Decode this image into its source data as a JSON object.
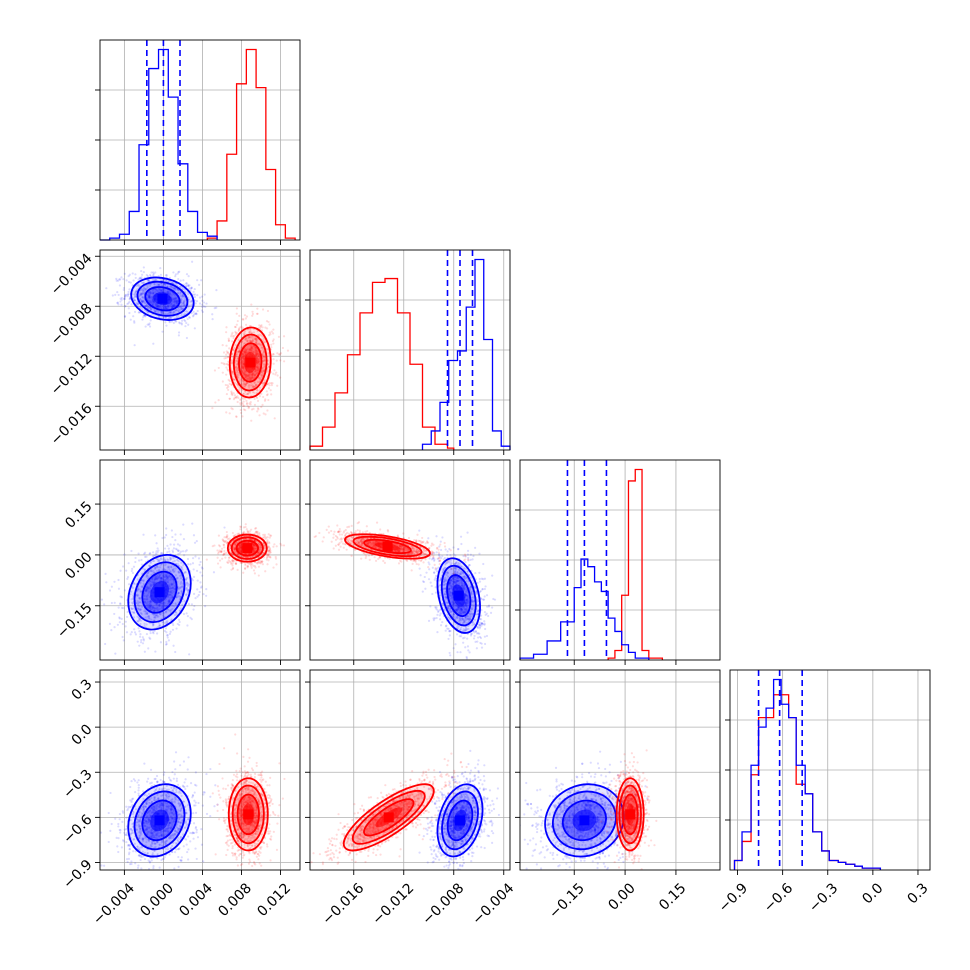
{
  "chart_data": {
    "type": "corner",
    "grid": true,
    "colors": {
      "series_a": "#0000ff",
      "series_b": "#ff0000"
    },
    "parameters": [
      {
        "range": [
          -0.0065,
          0.014
        ],
        "ticks": [
          -0.004,
          0.0,
          0.004,
          0.008,
          0.012
        ],
        "tick_labels": [
          "−0.004",
          "0.000",
          "0.004",
          "0.008",
          "0.012"
        ]
      },
      {
        "range": [
          -0.0195,
          -0.0035
        ],
        "ticks": [
          -0.016,
          -0.012,
          -0.008,
          -0.004
        ],
        "tick_labels": [
          "−0.016",
          "−0.012",
          "−0.008",
          "−0.004"
        ]
      },
      {
        "range": [
          -0.31,
          0.28
        ],
        "ticks": [
          -0.15,
          0.0,
          0.15
        ],
        "tick_labels": [
          "−0.15",
          "0.00",
          "0.15"
        ]
      },
      {
        "range": [
          -0.95,
          0.38
        ],
        "ticks": [
          -0.9,
          -0.6,
          -0.3,
          0.0,
          0.3
        ],
        "tick_labels": [
          "−0.9",
          "−0.6",
          "−0.3",
          "0.0",
          "0.3"
        ]
      }
    ],
    "histograms": [
      {
        "series_a": {
          "bins": [
            -0.0065,
            -0.0055,
            -0.0045,
            -0.0035,
            -0.0025,
            -0.0015,
            -0.0005,
            0.0005,
            0.0015,
            0.0025,
            0.0035,
            0.0045,
            0.0055
          ],
          "counts": [
            0,
            1,
            3,
            15,
            50,
            90,
            100,
            75,
            40,
            15,
            4,
            2
          ]
        },
        "series_b": {
          "bins": [
            0.0045,
            0.0055,
            0.0065,
            0.0075,
            0.0085,
            0.0095,
            0.0105,
            0.0115,
            0.0125,
            0.0135
          ],
          "counts": [
            1,
            10,
            45,
            82,
            100,
            80,
            37,
            8,
            1
          ]
        },
        "quantiles_a": [
          -0.0017,
          0.0,
          0.0017
        ]
      },
      {
        "series_a": {
          "bins": [
            -0.0105,
            -0.0098,
            -0.0091,
            -0.0084,
            -0.0077,
            -0.007,
            -0.0063,
            -0.0056,
            -0.0049,
            -0.0042,
            -0.0035
          ],
          "counts": [
            3,
            10,
            25,
            47,
            52,
            75,
            100,
            58,
            10,
            2
          ]
        },
        "series_b": {
          "bins": [
            -0.0195,
            -0.0185,
            -0.0175,
            -0.0165,
            -0.0155,
            -0.0145,
            -0.0135,
            -0.0125,
            -0.0115,
            -0.0105,
            -0.0095,
            -0.0085,
            -0.008
          ],
          "counts": [
            2,
            12,
            30,
            50,
            72,
            88,
            90,
            72,
            45,
            12,
            3,
            1
          ]
        },
        "quantiles_a": [
          -0.0085,
          -0.0075,
          -0.0065
        ]
      },
      {
        "series_a": {
          "bins": [
            -0.31,
            -0.27,
            -0.23,
            -0.19,
            -0.15,
            -0.13,
            -0.11,
            -0.09,
            -0.07,
            -0.05,
            -0.03,
            -0.01,
            0.01,
            0.03,
            0.07
          ],
          "counts": [
            1,
            3,
            10,
            20,
            38,
            53,
            49,
            41,
            36,
            22,
            15,
            8,
            4,
            1
          ]
        },
        "series_b": {
          "bins": [
            -0.05,
            -0.03,
            -0.01,
            0.01,
            0.03,
            0.05,
            0.07,
            0.11
          ],
          "counts": [
            1,
            5,
            34,
            94,
            100,
            5,
            1
          ]
        },
        "quantiles_a": [
          -0.17,
          -0.12,
          -0.055
        ]
      },
      {
        "series_a": {
          "bins": [
            -0.92,
            -0.87,
            -0.81,
            -0.76,
            -0.71,
            -0.66,
            -0.61,
            -0.56,
            -0.51,
            -0.45,
            -0.4,
            -0.34,
            -0.29,
            -0.23,
            -0.18,
            -0.12,
            -0.07,
            -0.01,
            0.05
          ],
          "counts": [
            5,
            20,
            55,
            75,
            85,
            100,
            87,
            80,
            55,
            40,
            20,
            10,
            5,
            4,
            3,
            2,
            1,
            1
          ]
        },
        "series_b": {
          "bins": [
            -0.92,
            -0.87,
            -0.81,
            -0.76,
            -0.71,
            -0.66,
            -0.61,
            -0.56,
            -0.51,
            -0.45,
            -0.4,
            -0.34,
            -0.29,
            -0.23,
            -0.18,
            -0.12,
            -0.07,
            -0.01,
            0.05
          ],
          "counts": [
            5,
            15,
            50,
            80,
            80,
            92,
            92,
            80,
            45,
            40,
            20,
            10,
            5,
            4,
            3,
            2,
            1,
            1
          ]
        },
        "quantiles_a": [
          -0.76,
          -0.62,
          -0.47
        ]
      }
    ],
    "joint": [
      {
        "row": 1,
        "col": 0,
        "series_a": {
          "center": [
            -0.0001,
            -0.0074
          ],
          "std": [
            0.0016,
            0.00085
          ],
          "corr": -0.2,
          "n": 1100
        },
        "series_b": {
          "center": [
            0.0089,
            -0.0125
          ],
          "std": [
            0.00105,
            0.0014
          ],
          "corr": 0.05,
          "n": 1100
        }
      },
      {
        "row": 2,
        "col": 0,
        "series_a": {
          "center": [
            -0.0004,
            -0.11
          ],
          "std": [
            0.0016,
            0.055
          ],
          "corr": 0.25,
          "n": 1100
        },
        "series_b": {
          "center": [
            0.0086,
            0.02
          ],
          "std": [
            0.001,
            0.02
          ],
          "corr": 0.0,
          "n": 1100
        }
      },
      {
        "row": 2,
        "col": 1,
        "series_a": {
          "center": [
            -0.0076,
            -0.12
          ],
          "std": [
            0.00085,
            0.055
          ],
          "corr": -0.3,
          "n": 1100
        },
        "series_b": {
          "center": [
            -0.0133,
            0.025
          ],
          "std": [
            0.0017,
            0.018
          ],
          "corr": -0.55,
          "n": 1100
        }
      },
      {
        "row": 3,
        "col": 0,
        "series_a": {
          "center": [
            -0.0004,
            -0.62
          ],
          "std": [
            0.0016,
            0.12
          ],
          "corr": 0.2,
          "n": 1100
        },
        "series_b": {
          "center": [
            0.0087,
            -0.58
          ],
          "std": [
            0.001,
            0.12
          ],
          "corr": 0.0,
          "n": 1100
        }
      },
      {
        "row": 3,
        "col": 1,
        "series_a": {
          "center": [
            -0.0075,
            -0.62
          ],
          "std": [
            0.0009,
            0.12
          ],
          "corr": 0.3,
          "n": 1100
        },
        "series_b": {
          "center": [
            -0.0132,
            -0.6
          ],
          "std": [
            0.0018,
            0.11
          ],
          "corr": 0.8,
          "n": 1100
        }
      },
      {
        "row": 3,
        "col": 2,
        "series_a": {
          "center": [
            -0.12,
            -0.62
          ],
          "std": [
            0.058,
            0.12
          ],
          "corr": 0.1,
          "n": 1100
        },
        "series_b": {
          "center": [
            0.015,
            -0.58
          ],
          "std": [
            0.02,
            0.12
          ],
          "corr": 0.0,
          "n": 1100
        }
      }
    ]
  }
}
